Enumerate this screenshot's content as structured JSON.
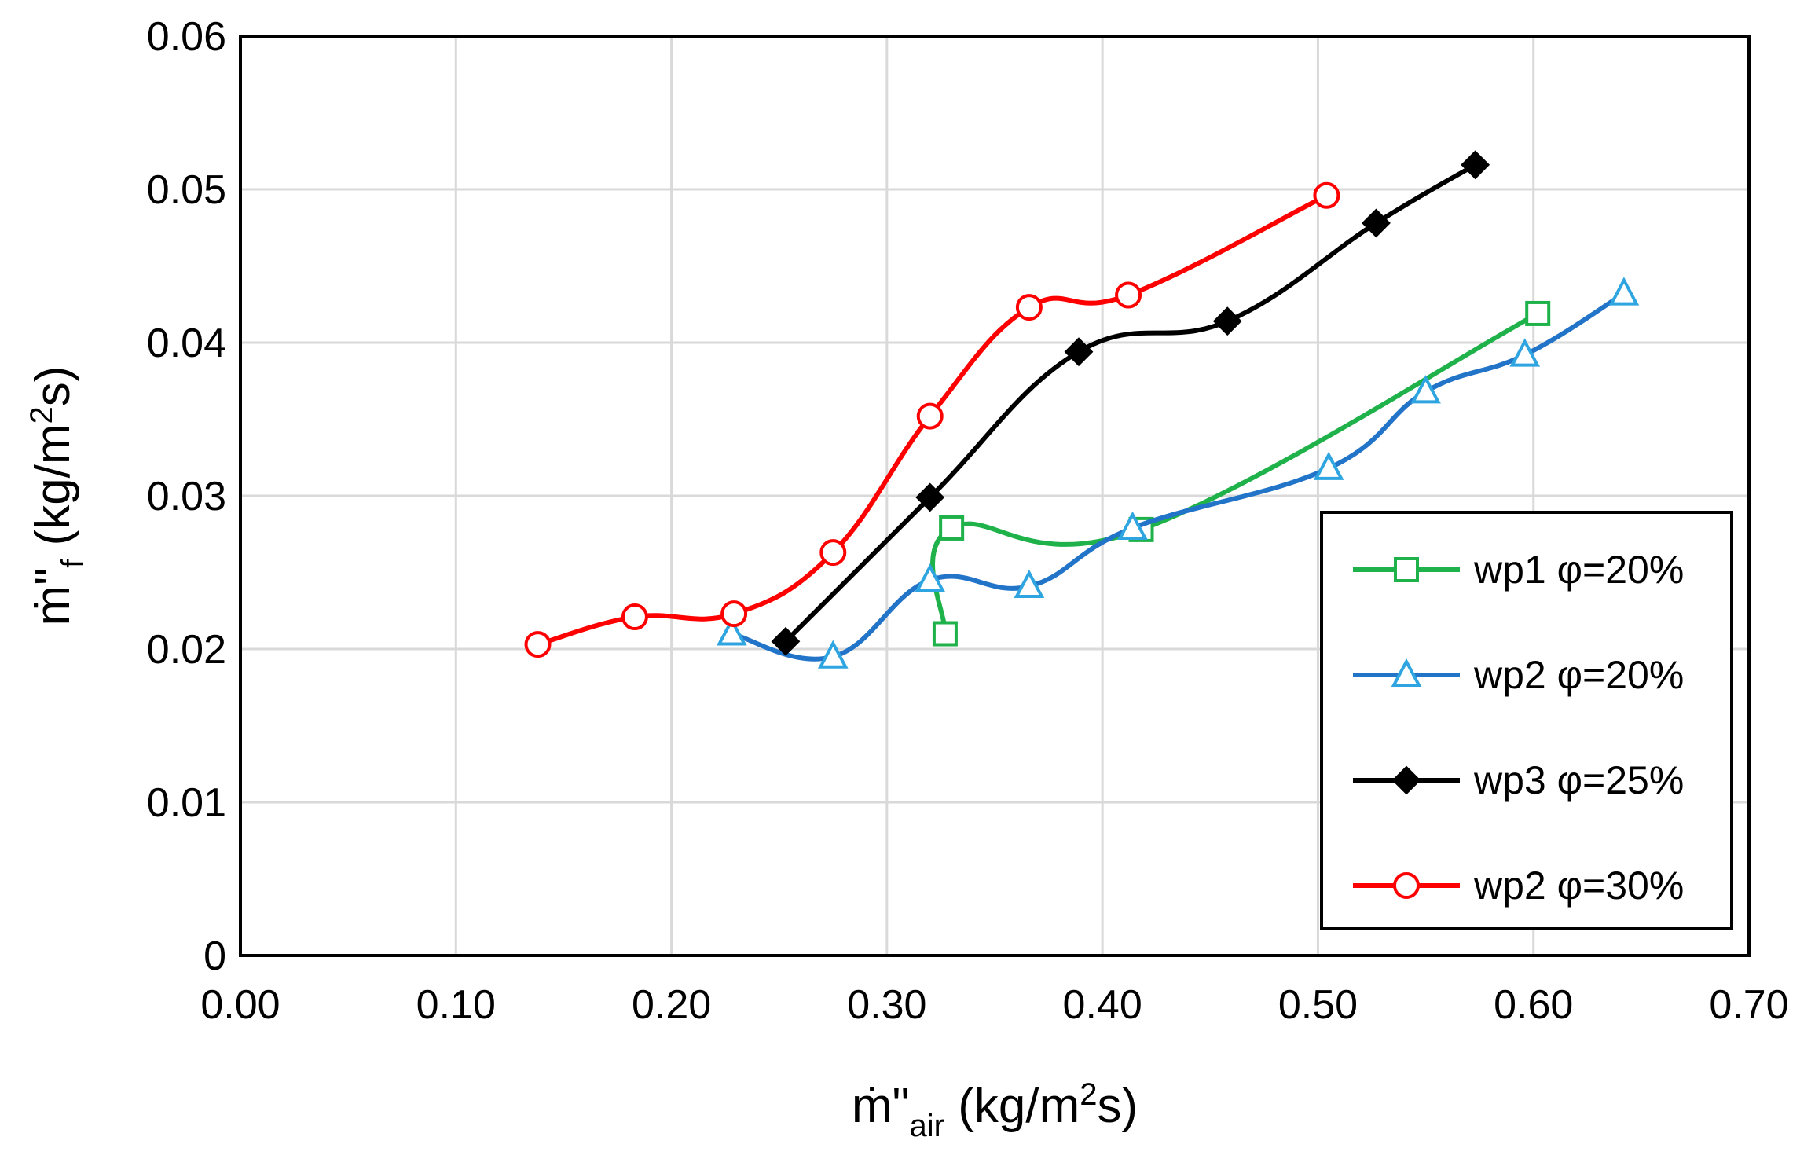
{
  "chart_data": {
    "type": "line",
    "title": "",
    "xlabel": {
      "main": "ṁ\"",
      "sub": "air",
      "unit_pre": " (kg/m",
      "sup": "2",
      "unit_post": "s)"
    },
    "ylabel": {
      "main": "ṁ\"",
      "sub": "f",
      "unit_pre": " (kg/m",
      "sup": "2",
      "unit_post": "s)"
    },
    "xlim": [
      0.0,
      0.7
    ],
    "ylim": [
      0.0,
      0.06
    ],
    "x_ticks": [
      0.0,
      0.1,
      0.2,
      0.3,
      0.4,
      0.5,
      0.6,
      0.7
    ],
    "x_tick_labels": [
      "0.00",
      "0.10",
      "0.20",
      "0.30",
      "0.40",
      "0.50",
      "0.60",
      "0.70"
    ],
    "y_ticks": [
      0.0,
      0.01,
      0.02,
      0.03,
      0.04,
      0.05,
      0.06
    ],
    "y_tick_labels": [
      "0",
      "0.01",
      "0.02",
      "0.03",
      "0.04",
      "0.05",
      "0.06"
    ],
    "grid": true,
    "legend_position": "bottom-right",
    "series": [
      {
        "name": "wp1 φ=20%",
        "color": "#1fb24a",
        "marker": "square-open",
        "x": [
          0.327,
          0.33,
          0.418,
          0.602
        ],
        "y": [
          0.021,
          0.0279,
          0.0278,
          0.0419
        ]
      },
      {
        "name": "wp2 φ=20%",
        "color": "#2174c8",
        "marker_color": "#2ea5e0",
        "marker": "triangle-open",
        "x": [
          0.228,
          0.275,
          0.32,
          0.366,
          0.414,
          0.505,
          0.55,
          0.596,
          0.642
        ],
        "y": [
          0.021,
          0.0195,
          0.0245,
          0.0241,
          0.0279,
          0.0318,
          0.0368,
          0.0392,
          0.0432
        ]
      },
      {
        "name": "wp3 φ=25%",
        "color": "#000000",
        "marker": "diamond-filled",
        "x": [
          0.253,
          0.32,
          0.389,
          0.458,
          0.527,
          0.573
        ],
        "y": [
          0.0205,
          0.0299,
          0.0394,
          0.0414,
          0.0478,
          0.0516
        ]
      },
      {
        "name": "wp2 φ=30%",
        "color": "#ff0000",
        "marker": "circle-open",
        "x": [
          0.138,
          0.183,
          0.229,
          0.275,
          0.32,
          0.366,
          0.412,
          0.504
        ],
        "y": [
          0.0203,
          0.0221,
          0.0223,
          0.0263,
          0.0352,
          0.0423,
          0.0431,
          0.0496
        ]
      }
    ]
  }
}
